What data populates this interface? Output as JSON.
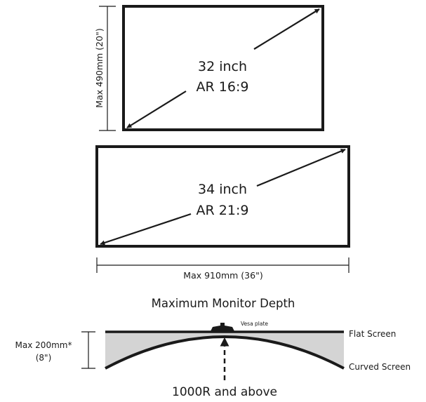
{
  "monitor_32": {
    "size_label": "32 inch",
    "aspect_label": "AR 16:9",
    "height_limit": "Max 490mm (20\")"
  },
  "monitor_34": {
    "size_label": "34 inch",
    "aspect_label": "AR 21:9",
    "width_limit": "Max 910mm (36\")"
  },
  "depth": {
    "title": "Maximum Monitor Depth",
    "limit_line1": "Max 200mm*",
    "limit_line2": "(8\")",
    "vesa_label": "Vesa plate",
    "flat_label": "Flat Screen",
    "curved_label": "Curved Screen",
    "curvature_label": "1000R and above"
  },
  "colors": {
    "line": "#1a1a1a",
    "depth_fill": "#d4d4d4"
  }
}
